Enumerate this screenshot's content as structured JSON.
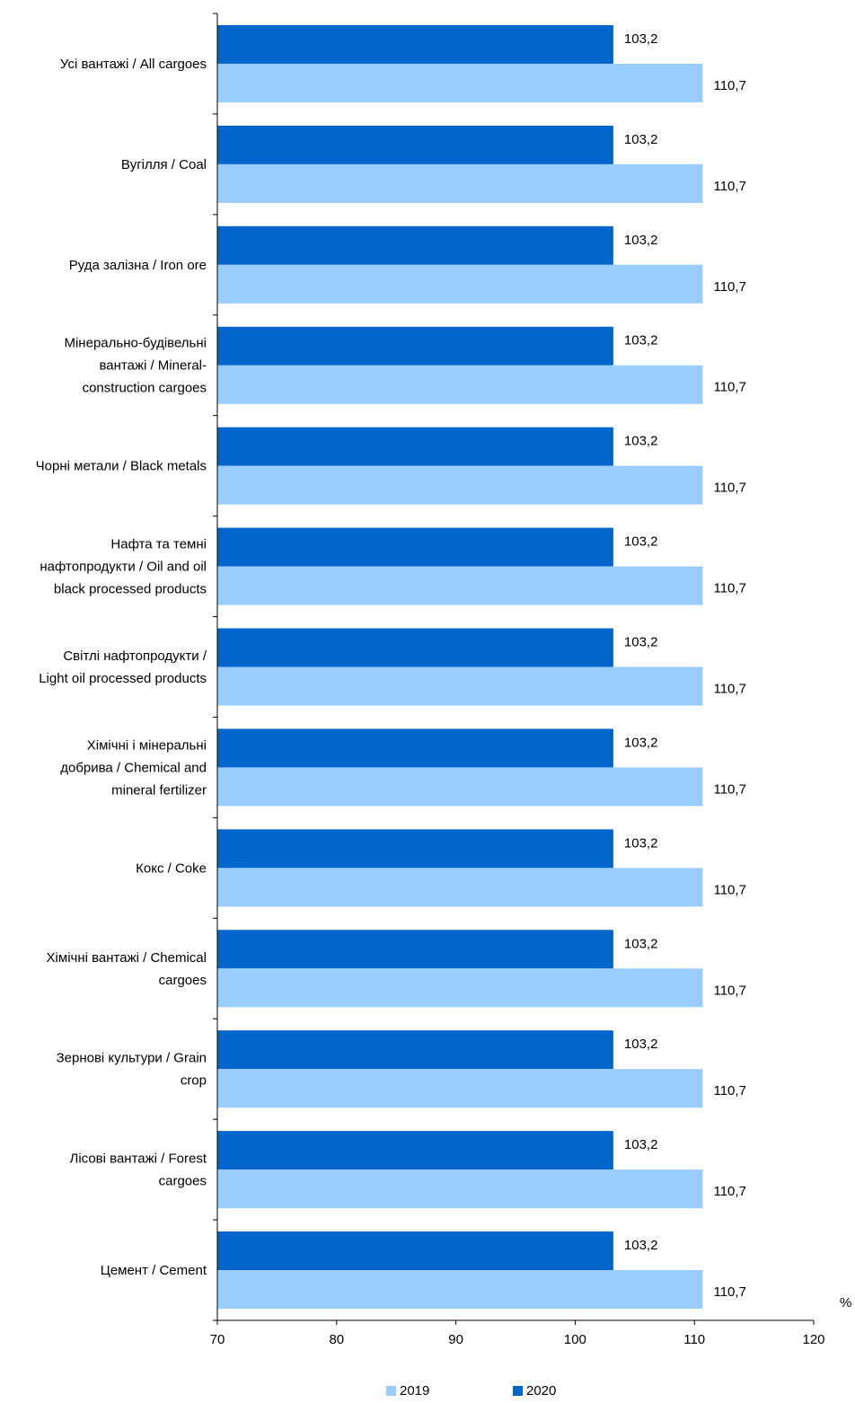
{
  "chart_data": {
    "type": "bar",
    "orientation": "horizontal",
    "unit_label": "%",
    "xlim": [
      70,
      120
    ],
    "ticks": [
      70,
      80,
      90,
      100,
      110,
      120
    ],
    "categories": [
      "Усі вантажі / All cargoes",
      "Вугілля / Coal",
      "Руда залізна / Iron ore",
      "Мінерально-будівельні вантажі / Mineral-construction cargoes",
      "Чорні метали / Black metals",
      "Нафта та темні нафтопродукти / Oil and oil black processed products",
      "Світлі нафтопродукти / Light oil processed products",
      "Хімічні і мінеральні добрива / Chemical and mineral fertilizer",
      "Кокс / Coke",
      "Хімічні вантажі / Chemical cargoes",
      "Зернові культури / Grain crop",
      "Лісові вантажі / Forest cargoes",
      "Цемент / Cement"
    ],
    "category_lines": [
      [
        "Усі вантажі / All cargoes"
      ],
      [
        "Вугілля / Coal"
      ],
      [
        "Руда залізна / Iron ore"
      ],
      [
        "Мінерально-будівельні",
        "вантажі / Mineral-",
        "construction cargoes"
      ],
      [
        "Чорні метали / Black metals"
      ],
      [
        "Нафта та темні",
        "нафтопродукти / Oil and oil",
        "black processed products"
      ],
      [
        "Світлі нафтопродукти /",
        "Light oil processed products"
      ],
      [
        "Хімічні і мінеральні",
        "добрива / Chemical and",
        "mineral fertilizer"
      ],
      [
        "Кокс / Coke"
      ],
      [
        "Хімічні вантажі / Chemical",
        "cargoes"
      ],
      [
        "Зернові культури / Grain",
        "crop"
      ],
      [
        "Лісові вантажі / Forest",
        "cargoes"
      ],
      [
        "Цемент / Cement"
      ]
    ],
    "series": [
      {
        "name": "2020",
        "color": "#0066CC",
        "values": [
          103.2,
          103.2,
          103.2,
          103.2,
          103.2,
          103.2,
          103.2,
          103.2,
          103.2,
          103.2,
          103.2,
          103.2,
          103.2
        ],
        "labels": [
          "103,2",
          "103,2",
          "103,2",
          "103,2",
          "103,2",
          "103,2",
          "103,2",
          "103,2",
          "103,2",
          "103,2",
          "103,2",
          "103,2",
          "103,2"
        ]
      },
      {
        "name": "2019",
        "color": "#99CCFF",
        "values": [
          110.7,
          110.7,
          110.7,
          110.7,
          110.7,
          110.7,
          110.7,
          110.7,
          110.7,
          110.7,
          110.7,
          110.7,
          110.7
        ],
        "labels": [
          "110,7",
          "110,7",
          "110,7",
          "110,7",
          "110,7",
          "110,7",
          "110,7",
          "110,7",
          "110,7",
          "110,7",
          "110,7",
          "110,7",
          "110,7"
        ]
      }
    ],
    "legend": [
      "2019",
      "2020"
    ],
    "grid": false,
    "legend_position": "bottom"
  }
}
